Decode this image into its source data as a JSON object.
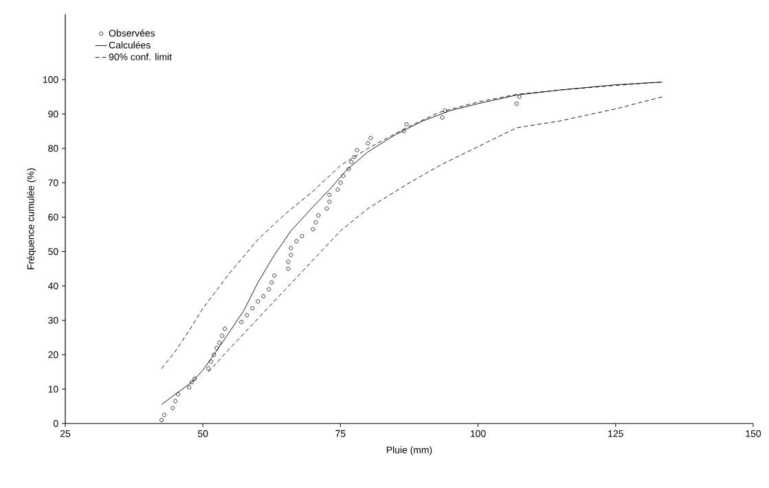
{
  "chart_data": {
    "type": "line",
    "xlabel": "Pluie (mm)",
    "ylabel": "Fréquence cumulée (%)",
    "xlim": [
      25,
      150
    ],
    "xticks": [
      25,
      50,
      75,
      100,
      125,
      150
    ],
    "ylim": [
      0,
      119
    ],
    "yticks": [
      0,
      10,
      20,
      30,
      40,
      50,
      60,
      70,
      80,
      90,
      100
    ],
    "grid": false,
    "legend": "top left",
    "series": [
      {
        "name": "Observées",
        "type": "scatter",
        "marker": "circle",
        "color": "#000000",
        "x": [
          42.5,
          43,
          44.5,
          45,
          45.5,
          47.5,
          48,
          48.5,
          51,
          51.5,
          52,
          52.5,
          53,
          53.5,
          54,
          57,
          58,
          59,
          60,
          61,
          62,
          62.5,
          63,
          65.5,
          65.5,
          66,
          66,
          67,
          68,
          70,
          70.5,
          71,
          72.5,
          73,
          73,
          74.5,
          75,
          75.5,
          76.5,
          77,
          77.5,
          78,
          80,
          80.5,
          86.5,
          87,
          93.5,
          94,
          107,
          107.5
        ],
        "values": [
          1,
          2.5,
          4.5,
          6.5,
          8.5,
          10.5,
          12,
          13,
          16,
          18,
          20,
          22,
          23.5,
          25.5,
          27.5,
          29.5,
          31.5,
          33.5,
          35.5,
          37,
          39,
          41,
          43,
          45,
          47,
          49,
          51,
          53,
          54.5,
          56.5,
          58.5,
          60.5,
          62.5,
          64.5,
          66.5,
          68,
          70,
          72,
          74,
          76,
          77.5,
          79.5,
          81.5,
          83,
          85,
          87,
          89,
          91,
          93,
          95
        ]
      },
      {
        "name": "Calculées",
        "type": "line",
        "line_style": "solid",
        "color": "#000000",
        "x": [
          42.5,
          45,
          48,
          50,
          52,
          55,
          57.5,
          60,
          63,
          66,
          70,
          73,
          76,
          80,
          85,
          90,
          95,
          100,
          107,
          115,
          125,
          133.5
        ],
        "values": [
          5.5,
          8.5,
          12,
          15.5,
          20,
          27,
          33,
          41,
          49,
          56,
          63,
          68,
          73.5,
          79,
          84,
          88,
          91,
          93,
          95.5,
          97,
          98.5,
          99.3
        ]
      },
      {
        "name": "90% conf. limit",
        "type": "line",
        "line_style": "dashed",
        "color": "#000000",
        "x": [
          42.5,
          45,
          47.5,
          50,
          55,
          60,
          65,
          70,
          75,
          80,
          87,
          93,
          100,
          107,
          115,
          125,
          133.5
        ],
        "values": [
          16,
          21,
          27,
          33.5,
          44,
          53.5,
          61,
          67.5,
          75,
          80,
          86,
          90.5,
          93.5,
          95.7,
          97,
          98.3,
          99.3
        ]
      },
      {
        "type": "line",
        "line_style": "dashed",
        "color": "#000000",
        "x": [
          51,
          55,
          60,
          65,
          70,
          75,
          80,
          87,
          93,
          100,
          107,
          115,
          125,
          133.5
        ],
        "values": [
          15,
          22,
          30.5,
          39,
          47.5,
          56,
          62.5,
          69.5,
          75,
          80.5,
          86,
          88,
          91.5,
          95
        ]
      }
    ]
  }
}
